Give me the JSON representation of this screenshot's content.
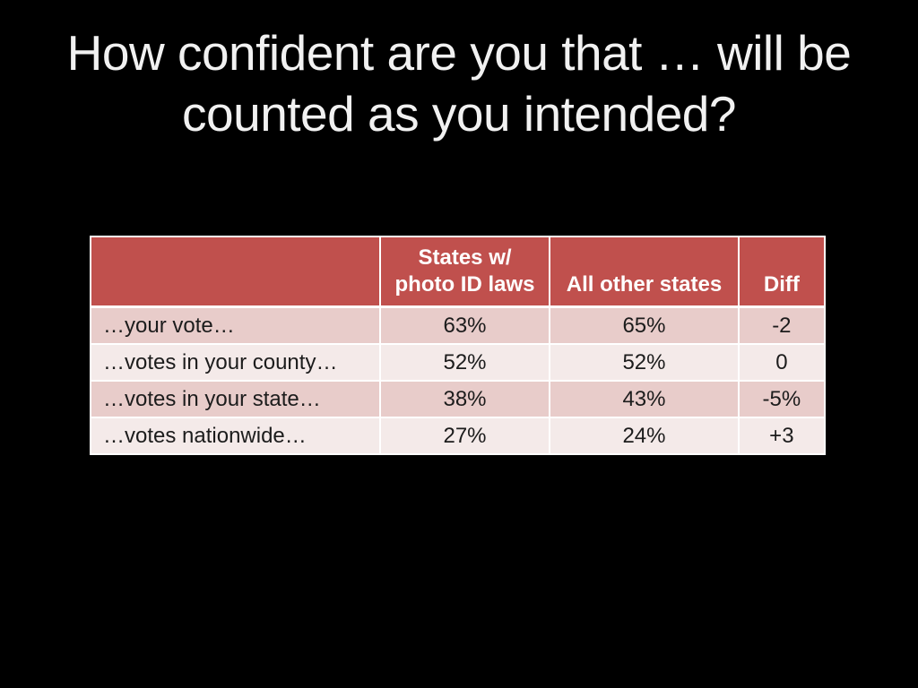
{
  "slide": {
    "title_line1": "How confident are you that … will be",
    "title_line2": "counted as you intended?"
  },
  "table_display": {
    "header_col1": "",
    "header_col2_line1": "States w/",
    "header_col2_line2": "photo ID laws",
    "header_col3": "All other states",
    "header_col4": "Diff"
  },
  "chart_data": {
    "type": "table",
    "title": "How confident are you that … will be counted as you intended?",
    "columns": [
      "",
      "States w/ photo ID laws",
      "All other states",
      "Diff"
    ],
    "rows": [
      [
        "…your vote…",
        "63%",
        "65%",
        "-2"
      ],
      [
        "…votes in your county…",
        "52%",
        "52%",
        "0"
      ],
      [
        "…votes in your state…",
        "38%",
        "43%",
        "-5%"
      ],
      [
        "…votes nationwide…",
        "27%",
        "24%",
        "+3"
      ]
    ],
    "notes": "Survey data table on a black presentation slide; banded pink rows under a brick-red header row"
  },
  "colors": {
    "background": "#000000",
    "title_text": "#F1F1F1",
    "header_bg": "#C0504D",
    "header_text": "#FFFFFF",
    "row_band_dark": "#E8CCCA",
    "row_band_light": "#F4EAE9",
    "body_text": "#1C1C1C",
    "grid_lines": "#FFFFFF"
  }
}
